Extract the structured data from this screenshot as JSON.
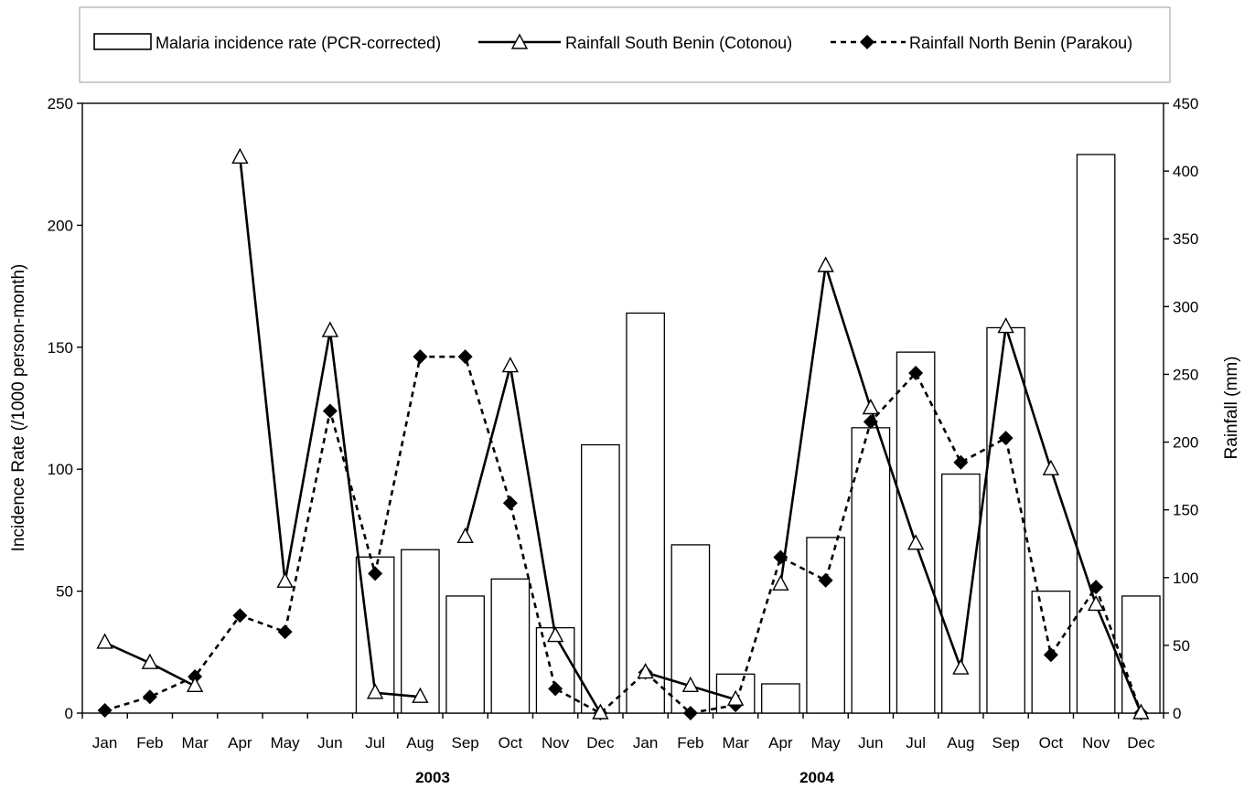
{
  "chart_data": {
    "type": "bar+line",
    "x_years": [
      {
        "label": "2003",
        "months": [
          "Jan",
          "Feb",
          "Mar",
          "Apr",
          "May",
          "Jun",
          "Jul",
          "Aug",
          "Sep",
          "Oct",
          "Nov",
          "Dec"
        ]
      },
      {
        "label": "2004",
        "months": [
          "Jan",
          "Feb",
          "Mar",
          "Apr",
          "May",
          "Jun",
          "Jul",
          "Aug",
          "Sep",
          "Oct",
          "Nov",
          "Dec"
        ]
      }
    ],
    "categories": [
      "Jan",
      "Feb",
      "Mar",
      "Apr",
      "May",
      "Jun",
      "Jul",
      "Aug",
      "Sep",
      "Oct",
      "Nov",
      "Dec",
      "Jan",
      "Feb",
      "Mar",
      "Apr",
      "May",
      "Jun",
      "Jul",
      "Aug",
      "Sep",
      "Oct",
      "Nov",
      "Dec"
    ],
    "ylabel_left": "Incidence Rate (/1000 person-month)",
    "ylabel_right": "Rainfall (mm)",
    "ylim_left": [
      0,
      250
    ],
    "ylim_right": [
      0,
      450
    ],
    "yticks_left": [
      "0",
      "50",
      "100",
      "150",
      "200",
      "250"
    ],
    "yticks_right": [
      "0",
      "50",
      "100",
      "150",
      "200",
      "250",
      "300",
      "350",
      "400",
      "450"
    ],
    "grid": false,
    "legend_position": "top",
    "series": [
      {
        "name": "Malaria incidence rate (PCR-corrected)",
        "type": "bar",
        "axis": "left",
        "values": [
          null,
          null,
          null,
          null,
          null,
          null,
          64,
          67,
          48,
          55,
          35,
          110,
          164,
          69,
          16,
          12,
          72,
          117,
          148,
          98,
          158,
          50,
          229,
          48
        ]
      },
      {
        "name": "Rainfall South Benin (Cotonou)",
        "type": "line",
        "axis": "right",
        "style": "solid",
        "marker": "open-triangle",
        "segments": [
          [
            0,
            2
          ],
          [
            3,
            7
          ],
          [
            8,
            11
          ],
          [
            12,
            14
          ],
          [
            15,
            23
          ]
        ],
        "values": [
          52,
          37,
          20,
          410,
          97,
          282,
          15,
          12,
          130,
          256,
          57,
          0,
          30,
          20,
          10,
          95,
          330,
          225,
          125,
          33,
          285,
          180,
          80,
          0
        ]
      },
      {
        "name": "Rainfall North Benin (Parakou)",
        "type": "line",
        "axis": "right",
        "style": "dashed",
        "marker": "filled-diamond",
        "values": [
          2,
          12,
          27,
          72,
          60,
          223,
          103,
          263,
          263,
          155,
          18,
          0,
          30,
          0,
          6,
          115,
          98,
          215,
          251,
          185,
          203,
          43,
          93,
          0
        ]
      }
    ]
  }
}
